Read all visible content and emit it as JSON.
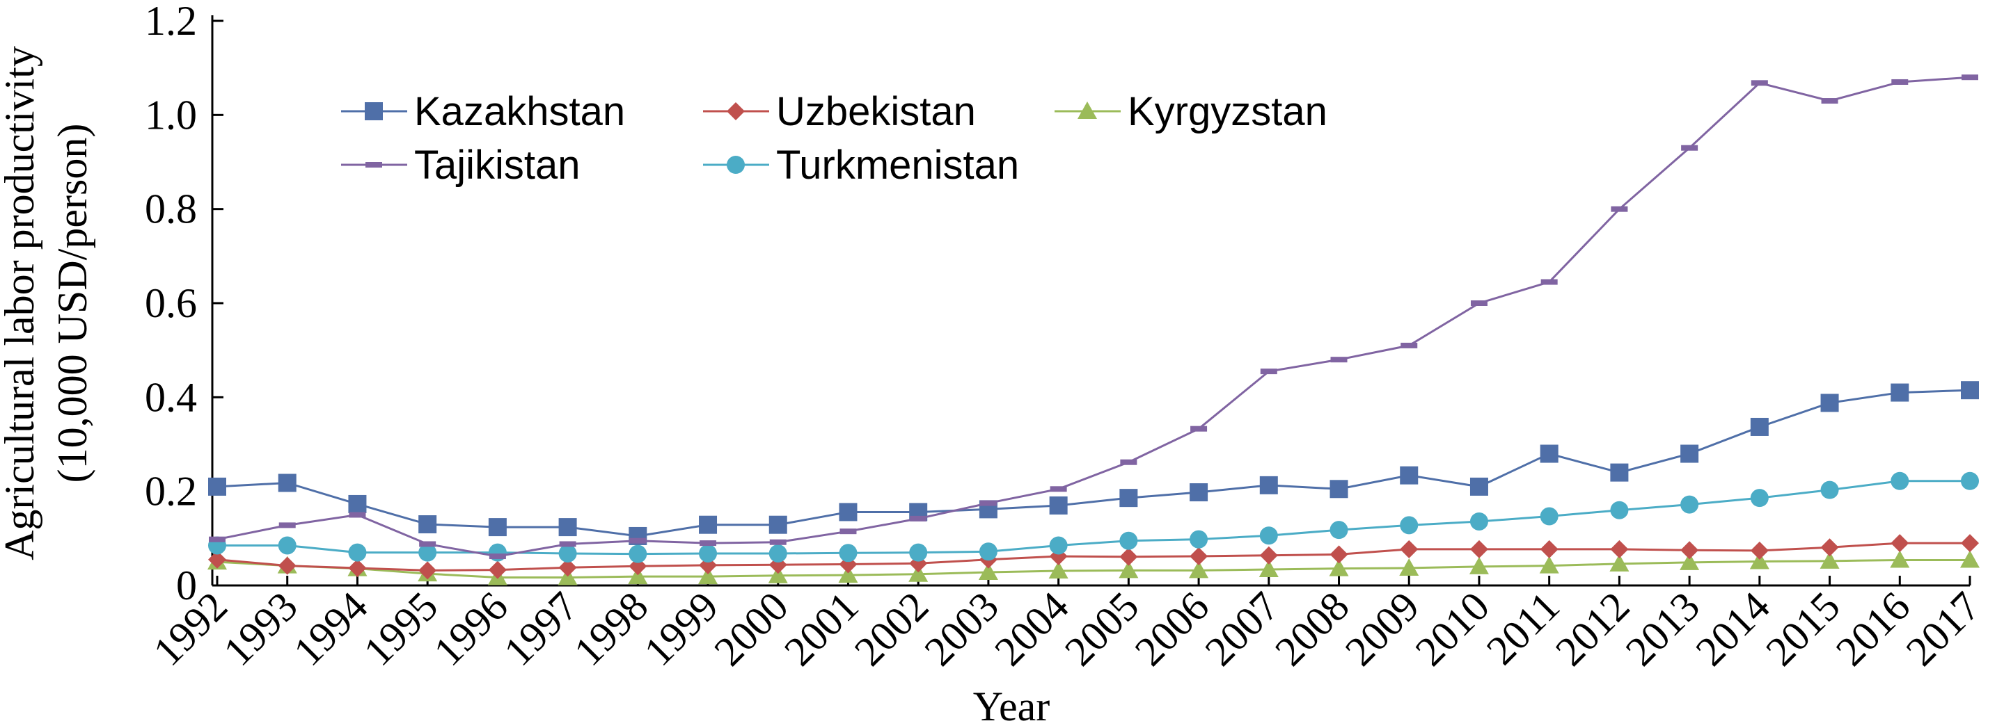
{
  "chart_data": {
    "type": "line",
    "title": "",
    "xlabel": "Year",
    "ylabel": [
      "Agricultural labor productivity",
      "(10,000 USD/person)"
    ],
    "ylim": [
      0,
      1.2
    ],
    "yticks": [
      "0",
      "0.2",
      "0.4",
      "0.6",
      "0.8",
      "1.0",
      "1.2"
    ],
    "ytick_values": [
      0,
      0.2,
      0.4,
      0.6,
      0.8,
      1.0,
      1.2
    ],
    "categories": [
      "1992",
      "1993",
      "1994",
      "1995",
      "1996",
      "1997",
      "1998",
      "1999",
      "2000",
      "2001",
      "2002",
      "2003",
      "2004",
      "2005",
      "2006",
      "2007",
      "2008",
      "2009",
      "2010",
      "2011",
      "2012",
      "2013",
      "2014",
      "2015",
      "2016",
      "2017"
    ],
    "grid": false,
    "legend_position": "top-left",
    "series": [
      {
        "name": "Kazakhstan",
        "color": "#4f6fa8",
        "marker": "square",
        "values": [
          0.21,
          0.218,
          0.173,
          0.13,
          0.124,
          0.124,
          0.105,
          0.129,
          0.129,
          0.156,
          0.156,
          0.162,
          0.17,
          0.186,
          0.198,
          0.213,
          0.205,
          0.234,
          0.21,
          0.28,
          0.24,
          0.28,
          0.337,
          0.388,
          0.41,
          0.415
        ]
      },
      {
        "name": "Uzbekistan",
        "color": "#c0504d",
        "marker": "diamond",
        "values": [
          0.055,
          0.042,
          0.037,
          0.032,
          0.033,
          0.038,
          0.041,
          0.043,
          0.044,
          0.045,
          0.047,
          0.055,
          0.062,
          0.061,
          0.062,
          0.064,
          0.066,
          0.077,
          0.077,
          0.077,
          0.077,
          0.075,
          0.074,
          0.081,
          0.09,
          0.09
        ]
      },
      {
        "name": "Kyrgyzstan",
        "color": "#9bbb59",
        "marker": "triangle",
        "values": [
          0.05,
          0.042,
          0.036,
          0.025,
          0.017,
          0.017,
          0.019,
          0.019,
          0.021,
          0.022,
          0.024,
          0.028,
          0.031,
          0.032,
          0.032,
          0.034,
          0.036,
          0.037,
          0.04,
          0.042,
          0.046,
          0.049,
          0.051,
          0.052,
          0.054,
          0.054
        ]
      },
      {
        "name": "Tajikistan",
        "color": "#8064a2",
        "marker": "dash",
        "values": [
          0.098,
          0.128,
          0.15,
          0.088,
          0.062,
          0.088,
          0.095,
          0.09,
          0.092,
          0.115,
          0.142,
          0.175,
          0.205,
          0.262,
          0.333,
          0.455,
          0.48,
          0.51,
          0.6,
          0.645,
          0.8,
          0.93,
          1.068,
          1.03,
          1.07,
          1.08
        ]
      },
      {
        "name": "Turkmenistan",
        "color": "#4bacc6",
        "marker": "circle",
        "values": [
          0.085,
          0.085,
          0.07,
          0.07,
          0.07,
          0.068,
          0.067,
          0.068,
          0.068,
          0.069,
          0.07,
          0.072,
          0.085,
          0.095,
          0.098,
          0.106,
          0.118,
          0.128,
          0.136,
          0.147,
          0.16,
          0.172,
          0.186,
          0.203,
          0.222,
          0.222
        ]
      }
    ]
  }
}
